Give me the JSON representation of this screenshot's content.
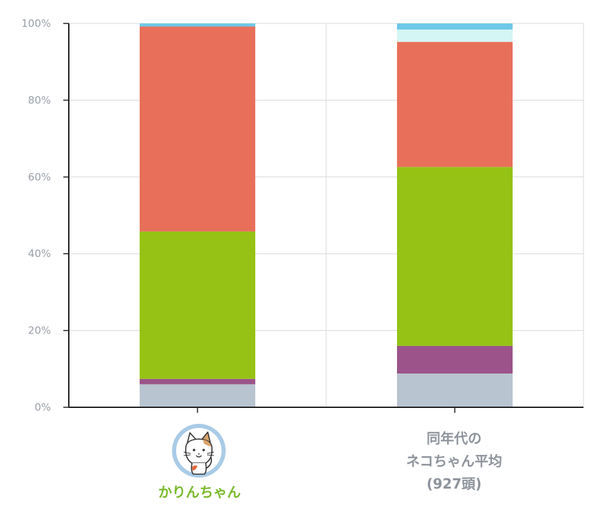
{
  "chart_data": {
    "type": "bar",
    "stacked": true,
    "normalized": true,
    "ylim": [
      0,
      100
    ],
    "y_ticks": [
      "0%",
      "20%",
      "40%",
      "60%",
      "80%",
      "100%"
    ],
    "grid": true,
    "legend": "none",
    "categories": [
      "かりんちゃん",
      "同年代のネコちゃん平均(927頭)"
    ],
    "category_display": {
      "pet_name": "かりんちゃん",
      "average_lines": [
        "同年代の",
        "ネコちゃん平均",
        "(927頭)"
      ]
    },
    "series": [
      {
        "color": "#b8c4d0",
        "values": [
          6.0,
          8.8
        ]
      },
      {
        "color": "#9b5389",
        "values": [
          1.4,
          7.2
        ]
      },
      {
        "color": "#95c215",
        "values": [
          38.4,
          46.6
        ]
      },
      {
        "color": "#e8705a",
        "values": [
          53.4,
          32.6
        ]
      },
      {
        "color": "#d4f6f4",
        "values": [
          0.0,
          3.2
        ]
      },
      {
        "color": "#6ec8e8",
        "values": [
          0.8,
          1.6
        ]
      }
    ]
  },
  "avatar_icon": "cat-face-icon"
}
